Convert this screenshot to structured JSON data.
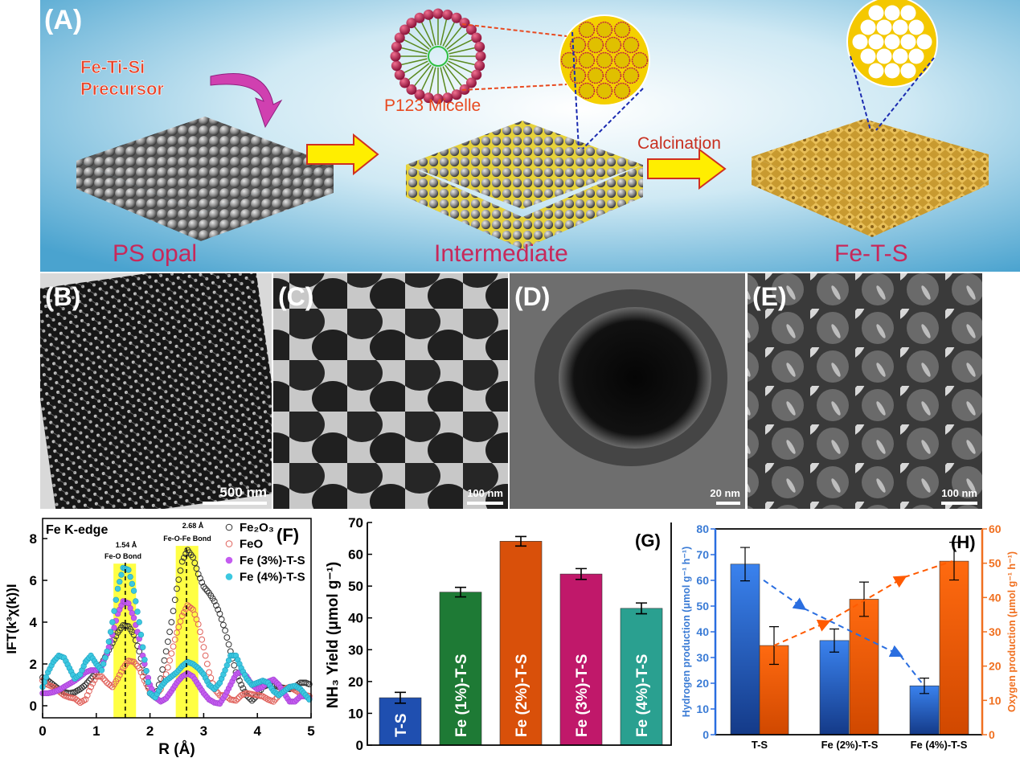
{
  "panel_a": {
    "label": "(A)",
    "precursor_line1": "Fe-Ti-Si",
    "precursor_line2": "Precursor",
    "micelle_label": "P123 Micelle",
    "calcination_label": "Calcination",
    "ps_opal_label": "PS opal",
    "intermediate_label": "Intermediate",
    "fets_label": "Fe-T-S"
  },
  "micrographs": [
    {
      "label": "(B)",
      "scale": "500 nm"
    },
    {
      "label": "(C)",
      "scale": "100 nm"
    },
    {
      "label": "(D)",
      "scale": "20 nm"
    },
    {
      "label": "(E)",
      "scale": "100 nm"
    }
  ],
  "colors": {
    "fe2o3": "#333333",
    "feo": "#e0605a",
    "fe3": "#c45cf0",
    "fe4": "#3cc8e0",
    "hydrogen": "#2a6ee0",
    "oxygen": "#ff5a00",
    "highlight": "#ffff44"
  },
  "chart_data": [
    {
      "type": "scatter",
      "panel_label": "(F)",
      "title": "Fe K-edge",
      "xlabel": "R (Å)",
      "ylabel": "IFT(k³χ(k))I",
      "xlim": [
        0,
        5
      ],
      "ylim": [
        -1,
        8.9
      ],
      "xticks": [
        "0",
        "1",
        "2",
        "3",
        "4",
        "5"
      ],
      "yticks": [
        "0",
        "2",
        "4",
        "6",
        "8"
      ],
      "legend_position": "top-right",
      "annotations": [
        {
          "value": "1.54 Å",
          "text": "Fe-O Bond",
          "r": 1.54,
          "band": [
            1.32,
            1.74
          ]
        },
        {
          "value": "2.68 Å",
          "text": "Fe-O-Fe Bond",
          "r": 2.68,
          "band": [
            2.48,
            2.9
          ]
        }
      ],
      "x": [
        0,
        0.1,
        0.2,
        0.3,
        0.4,
        0.5,
        0.6,
        0.7,
        0.8,
        0.9,
        1.0,
        1.1,
        1.2,
        1.3,
        1.4,
        1.5,
        1.6,
        1.7,
        1.8,
        1.9,
        2.0,
        2.1,
        2.2,
        2.3,
        2.4,
        2.5,
        2.6,
        2.7,
        2.8,
        2.9,
        3.0,
        3.1,
        3.2,
        3.3,
        3.4,
        3.5,
        3.6,
        3.7,
        3.8,
        3.9,
        4.0,
        4.1,
        4.2,
        4.3,
        4.4,
        4.5,
        4.6,
        4.7,
        4.8,
        4.9,
        5.0
      ],
      "series": [
        {
          "name": "Fe₂O₃",
          "marker": "open",
          "values": [
            1.35,
            1.2,
            1.0,
            0.8,
            0.65,
            0.6,
            0.65,
            0.8,
            1.0,
            1.3,
            1.6,
            2.0,
            2.5,
            3.0,
            3.5,
            3.85,
            3.8,
            3.4,
            2.6,
            1.6,
            0.6,
            0.4,
            1.3,
            2.6,
            4.0,
            5.6,
            6.9,
            7.45,
            7.1,
            6.3,
            5.7,
            5.4,
            5.0,
            4.4,
            3.6,
            2.6,
            1.6,
            1.0,
            0.5,
            0.25,
            0.5,
            0.9,
            1.0,
            1.0,
            0.9,
            0.85,
            0.8,
            0.9,
            1.1,
            1.1,
            1.0
          ]
        },
        {
          "name": "FeO",
          "marker": "open",
          "values": [
            1.2,
            1.0,
            0.9,
            0.7,
            0.5,
            0.4,
            0.35,
            0.15,
            0.3,
            0.9,
            1.4,
            1.4,
            1.1,
            0.9,
            1.3,
            1.8,
            2.15,
            2.1,
            1.8,
            1.2,
            0.7,
            0.5,
            0.8,
            1.5,
            2.5,
            3.5,
            4.3,
            4.8,
            4.6,
            3.9,
            2.8,
            1.6,
            0.8,
            0.5,
            0.5,
            0.3,
            0.25,
            0.5,
            0.6,
            0.55,
            0.5,
            0.45,
            0.3,
            0.2,
            0.5,
            0.8,
            0.9,
            0.75,
            0.6,
            0.5,
            0.45
          ]
        },
        {
          "name": "Fe (3%)-T-S",
          "marker": "filled",
          "values": [
            0.6,
            0.6,
            0.65,
            0.75,
            0.9,
            1.05,
            1.2,
            1.4,
            1.6,
            1.7,
            1.7,
            1.9,
            2.5,
            3.4,
            4.4,
            5.0,
            4.9,
            4.2,
            3.2,
            2.0,
            1.0,
            0.4,
            0.2,
            0.35,
            0.7,
            1.1,
            1.4,
            1.55,
            1.4,
            1.0,
            0.6,
            0.3,
            0.15,
            0.1,
            0.5,
            1.0,
            1.5,
            1.65,
            1.4,
            1.0,
            0.8,
            0.9,
            1.15,
            1.25,
            1.0,
            0.6,
            0.2,
            0.2,
            0.45,
            0.45,
            0.3
          ]
        },
        {
          "name": "Fe (4%)-T-S",
          "marker": "filled",
          "values": [
            0.9,
            1.6,
            2.1,
            2.4,
            2.3,
            1.8,
            1.3,
            1.5,
            2.1,
            2.4,
            2.0,
            1.7,
            2.6,
            4.0,
            5.6,
            6.6,
            6.5,
            5.5,
            4.0,
            2.2,
            0.6,
            0.4,
            0.9,
            1.2,
            1.4,
            1.6,
            1.9,
            2.1,
            2.0,
            1.8,
            1.5,
            1.0,
            0.8,
            1.1,
            1.7,
            2.4,
            2.4,
            1.8,
            1.3,
            1.0,
            1.1,
            1.2,
            1.1,
            0.7,
            0.5,
            0.7,
            0.9,
            0.95,
            0.8,
            0.5,
            0.2
          ]
        }
      ]
    },
    {
      "type": "bar",
      "panel_label": "(G)",
      "ylabel": "NH₃ Yield (μmol g⁻¹)",
      "ylim": [
        0,
        70
      ],
      "yticks": [
        "0",
        "10",
        "20",
        "30",
        "40",
        "50",
        "60",
        "70"
      ],
      "categories": [
        "T-S",
        "Fe (1%)-T-S",
        "Fe (2%)-T-S",
        "Fe (3%)-T-S",
        "Fe (4%)-T-S"
      ],
      "values": [
        14.9,
        48.1,
        64.1,
        53.8,
        43.0
      ],
      "errors": [
        1.7,
        1.5,
        1.5,
        1.7,
        1.7
      ],
      "bar_colors": [
        "#1f4fb0",
        "#1e7a35",
        "#d9500a",
        "#c0186a",
        "#2aa090"
      ]
    },
    {
      "type": "bar",
      "panel_label": "(H)",
      "categories": [
        "T-S",
        "Fe (2%)-T-S",
        "Fe (4%)-T-S"
      ],
      "ylabel_left": "Hydrogen production (μmol g⁻¹ h⁻¹)",
      "ylabel_right": "Oxygen production (μmol g⁻¹ h⁻¹)",
      "ylim_left": [
        0,
        80
      ],
      "ylim_right": [
        0,
        60
      ],
      "yticks_left": [
        "0",
        "10",
        "20",
        "30",
        "40",
        "50",
        "60",
        "70",
        "80"
      ],
      "yticks_right": [
        "0",
        "10",
        "20",
        "30",
        "40",
        "50",
        "60"
      ],
      "series": [
        {
          "axis": "left",
          "values": [
            66.3,
            36.6,
            19.0
          ],
          "errors": [
            6.5,
            4.5,
            3.0
          ]
        },
        {
          "axis": "right",
          "values": [
            26.0,
            39.5,
            50.6
          ],
          "errors": [
            5.5,
            5.0,
            5.5
          ]
        }
      ]
    }
  ]
}
